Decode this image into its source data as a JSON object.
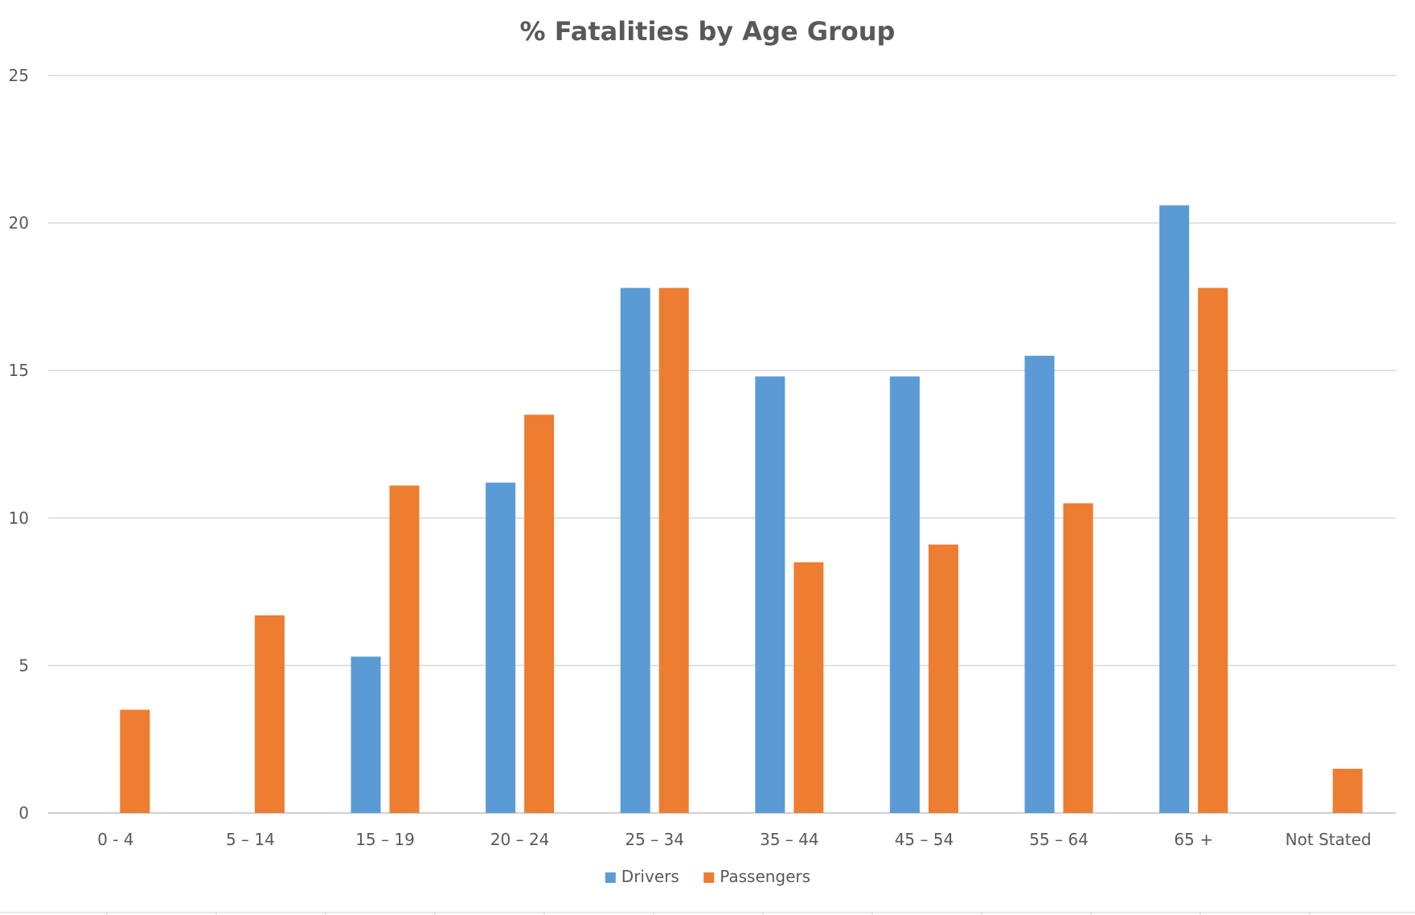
{
  "chart_data": {
    "type": "bar",
    "title": "% Fatalities by Age Group",
    "xlabel": "",
    "ylabel": "",
    "ylim": [
      0,
      25
    ],
    "yticks": [
      "0",
      "5",
      "10",
      "15",
      "20",
      "25"
    ],
    "grid": true,
    "legend_position": "bottom",
    "categories": [
      "0 - 4",
      "5 – 14",
      "15 – 19",
      "20 – 24",
      "25 – 34",
      "35 – 44",
      "45 – 54",
      "55 – 64",
      "65 +",
      "Not Stated"
    ],
    "series": [
      {
        "name": "Drivers",
        "color": "#5b9bd5",
        "values": [
          null,
          null,
          5.3,
          11.2,
          17.8,
          14.8,
          14.8,
          15.5,
          20.6,
          null
        ]
      },
      {
        "name": "Passengers",
        "color": "#ed7d31",
        "values": [
          3.5,
          6.7,
          11.1,
          13.5,
          17.8,
          8.5,
          9.1,
          10.5,
          17.8,
          1.5
        ]
      }
    ]
  }
}
